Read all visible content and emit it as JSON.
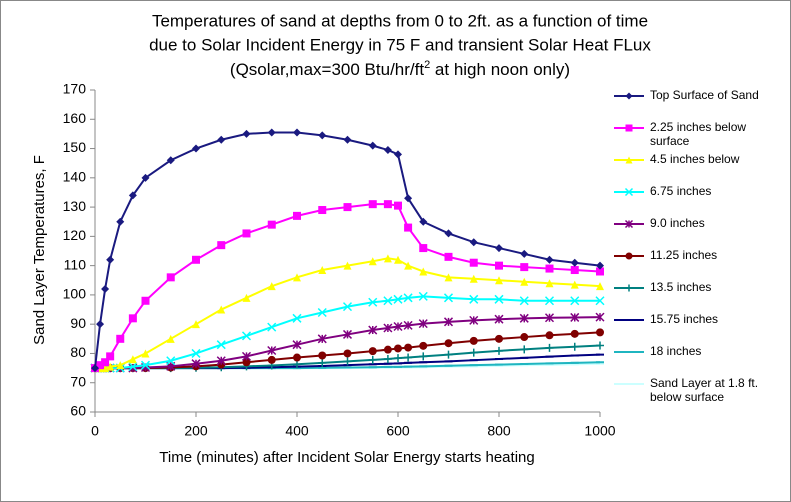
{
  "chart_data": {
    "type": "line",
    "title": [
      "Temperatures of sand at depths from 0 to 2ft. as a function of time",
      "due to Solar Incident Energy in 75 F and transient Solar Heat FLux",
      [
        "(Qsolar,max=300 Btu/hr/ft",
        "2",
        " at high noon only)"
      ]
    ],
    "x_label": "Time  (minutes) after Incident Solar Energy starts heating",
    "y_label": "Sand Layer Temperatures,  F",
    "xlim": [
      0,
      1000
    ],
    "xticks": [
      0,
      200,
      400,
      600,
      800,
      1000
    ],
    "ylim": [
      60,
      170
    ],
    "yticks": [
      60,
      70,
      80,
      90,
      100,
      110,
      120,
      130,
      140,
      150,
      160,
      170
    ],
    "grid": false,
    "legend": "right",
    "x": [
      0,
      10,
      20,
      30,
      50,
      75,
      100,
      150,
      200,
      250,
      300,
      350,
      400,
      450,
      500,
      550,
      580,
      600,
      620,
      650,
      700,
      750,
      800,
      850,
      900,
      950,
      1000
    ],
    "series": [
      {
        "name": "Top Surface of Sand",
        "color": "#1a1a80",
        "marker": "diamond",
        "values": [
          75,
          90,
          102,
          112,
          125,
          134,
          140,
          146,
          150,
          153,
          155,
          155.5,
          155.5,
          154.5,
          153,
          151,
          149.5,
          148,
          133,
          125,
          121,
          118,
          116,
          114,
          112,
          111,
          110
        ]
      },
      {
        "name": "2.25 inches below surface",
        "color": "#ff00ff",
        "marker": "square",
        "values": [
          75,
          76,
          77,
          79,
          85,
          92,
          98,
          106,
          112,
          117,
          121,
          124,
          127,
          129,
          130,
          131,
          131,
          130.5,
          123,
          116,
          113,
          111,
          110,
          109.5,
          109,
          108.5,
          108
        ]
      },
      {
        "name": "4.5 inches below",
        "color": "#ffff00",
        "marker": "triangle",
        "values": [
          75,
          75,
          75,
          75.5,
          76,
          78,
          80,
          85,
          90,
          95,
          99,
          103,
          106,
          108.5,
          110,
          111.5,
          112.5,
          112,
          110,
          108,
          106,
          105.5,
          105,
          104.5,
          104,
          103.5,
          103
        ]
      },
      {
        "name": "6.75 inches",
        "color": "#00ffff",
        "marker": "x",
        "values": [
          75,
          75,
          75,
          75,
          75,
          75.5,
          76,
          77.5,
          80,
          83,
          86,
          89,
          92,
          94,
          96,
          97.5,
          98,
          98.5,
          99,
          99.5,
          99,
          98.5,
          98.5,
          98,
          98,
          98,
          98
        ]
      },
      {
        "name": "9.0 inches",
        "color": "#800080",
        "marker": "star",
        "values": [
          75,
          75,
          75,
          75,
          75,
          75,
          75.2,
          75.6,
          76.5,
          77.5,
          79,
          81,
          83,
          85,
          86.5,
          88,
          88.7,
          89.2,
          89.6,
          90.2,
          90.8,
          91.3,
          91.7,
          92,
          92.2,
          92.3,
          92.4
        ]
      },
      {
        "name": "11.25 inches",
        "color": "#800000",
        "marker": "circle",
        "values": [
          75,
          75,
          75,
          75,
          75,
          75,
          75,
          75.2,
          75.6,
          76.2,
          77,
          77.8,
          78.6,
          79.3,
          80,
          80.8,
          81.3,
          81.7,
          82,
          82.6,
          83.5,
          84.3,
          85,
          85.6,
          86.2,
          86.7,
          87.2
        ]
      },
      {
        "name": "13.5 inches",
        "color": "#008080",
        "marker": "plus",
        "values": [
          75,
          75,
          75,
          75,
          75,
          75,
          75,
          75,
          75.1,
          75.3,
          75.6,
          75.9,
          76.3,
          76.8,
          77.3,
          77.8,
          78.1,
          78.4,
          78.6,
          79,
          79.6,
          80.3,
          80.9,
          81.4,
          81.9,
          82.3,
          82.7
        ]
      },
      {
        "name": "15.75 inches",
        "color": "#000080",
        "marker": "dash",
        "values": [
          75,
          75,
          75,
          75,
          75,
          75,
          75,
          75,
          75,
          75,
          75.1,
          75.3,
          75.5,
          75.7,
          76,
          76.3,
          76.5,
          76.6,
          76.8,
          77,
          77.3,
          77.7,
          78.1,
          78.5,
          78.9,
          79.3,
          79.6
        ]
      },
      {
        "name": "18 inches",
        "color": "#1fb5c0",
        "marker": "dash",
        "values": [
          75,
          75,
          75,
          75,
          75,
          75,
          75,
          75,
          75,
          75,
          75,
          75,
          75,
          75.1,
          75.2,
          75.3,
          75.4,
          75.4,
          75.5,
          75.6,
          75.8,
          76,
          76.2,
          76.4,
          76.6,
          76.8,
          77
        ]
      },
      {
        "name": "Sand Layer at 1.8 ft. below surface",
        "color": "#ccffff",
        "marker": "dash",
        "values": [
          75,
          75,
          75,
          75,
          75,
          75,
          75,
          75,
          75,
          75,
          75,
          75,
          75,
          75,
          75,
          75.1,
          75.1,
          75.2,
          75.2,
          75.3,
          75.5,
          75.6,
          75.8,
          76,
          76.1,
          76.3,
          76.5
        ]
      }
    ]
  }
}
